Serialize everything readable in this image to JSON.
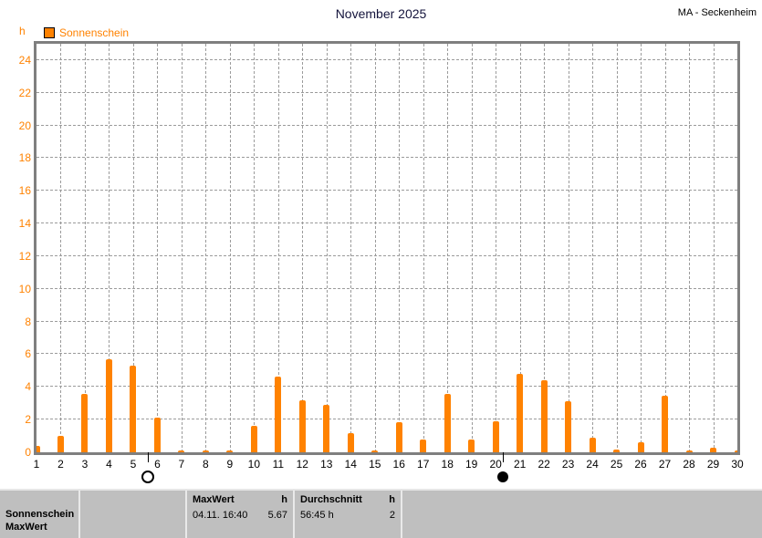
{
  "header": {
    "title": "November 2025",
    "station": "MA - Seckenheim"
  },
  "legend": {
    "label": "Sonnenschein"
  },
  "colors": {
    "accent_orange": "#ff8200",
    "grid_gray": "#9b9b9b",
    "frame_gray": "#7f7f7f",
    "footer_silver": "#bfbfbf"
  },
  "chart_data": {
    "type": "bar",
    "title": "November 2025",
    "series_name": "Sonnenschein",
    "xlabel": "",
    "ylabel": "h",
    "ylim": [
      0,
      25
    ],
    "y_ticks": [
      0,
      2,
      4,
      6,
      8,
      10,
      12,
      14,
      16,
      18,
      20,
      22,
      24
    ],
    "grid": "dashed",
    "legend_position": "top-left",
    "categories": [
      1,
      2,
      3,
      4,
      5,
      6,
      7,
      8,
      9,
      10,
      11,
      12,
      13,
      14,
      15,
      16,
      17,
      18,
      19,
      20,
      21,
      22,
      23,
      24,
      25,
      26,
      27,
      28,
      29,
      30
    ],
    "values": [
      0.4,
      1.0,
      3.6,
      5.67,
      5.3,
      2.1,
      0.1,
      0.1,
      0.1,
      1.6,
      4.65,
      3.2,
      2.9,
      1.15,
      0.1,
      1.85,
      0.8,
      3.55,
      0.8,
      1.9,
      4.8,
      4.4,
      3.1,
      0.9,
      0.15,
      0.6,
      3.45,
      0.1,
      0.3,
      0.1
    ],
    "bar_color": "#ff8200",
    "moon_markers": [
      {
        "symbol": "full-moon",
        "day": 5.6
      },
      {
        "symbol": "new-moon",
        "day": 20.3
      }
    ]
  },
  "footer_table": {
    "series_label_line1": "Sonnenschein",
    "series_label_line2": "MaxWert",
    "maxwert": {
      "header": "MaxWert",
      "unit_header": "h",
      "datetime": "04.11.  16:40",
      "value": "5.67"
    },
    "durchschnitt": {
      "header": "Durchschnitt",
      "unit_header": "h",
      "value": "56:45 h",
      "count": "2"
    }
  }
}
